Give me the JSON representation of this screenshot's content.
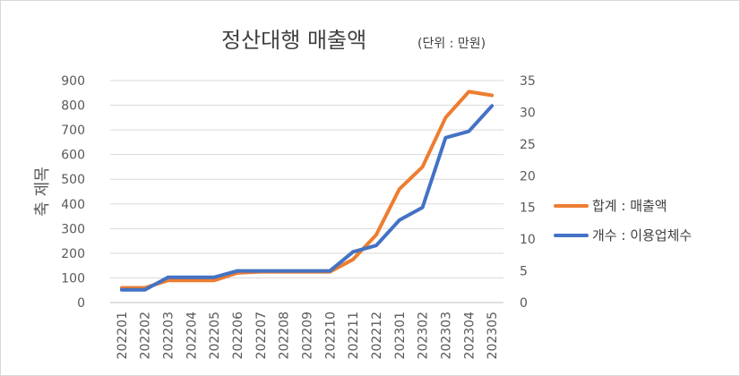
{
  "chart_data": {
    "type": "line",
    "title": "정산대행 매출액",
    "title_unit": "(단위 : 만원)",
    "ylabel": "축 제목",
    "categories": [
      "202201",
      "202202",
      "202203",
      "202204",
      "202205",
      "202206",
      "202207",
      "202208",
      "202209",
      "202210",
      "202211",
      "202212",
      "202301",
      "202302",
      "202303",
      "202304",
      "202305"
    ],
    "y_left": {
      "min": 0,
      "max": 900,
      "step": 100,
      "ticks": [
        "0",
        "100",
        "200",
        "300",
        "400",
        "500",
        "600",
        "700",
        "800",
        "900"
      ]
    },
    "y_right": {
      "min": 0,
      "max": 35,
      "step": 5,
      "ticks": [
        "0",
        "5",
        "10",
        "15",
        "20",
        "25",
        "30",
        "35"
      ]
    },
    "series": [
      {
        "name": "합계 : 매출액",
        "axis": "left",
        "color": "#ED7D31",
        "values": [
          60,
          60,
          90,
          90,
          90,
          120,
          125,
          125,
          125,
          125,
          175,
          275,
          460,
          550,
          750,
          855,
          840
        ]
      },
      {
        "name": "개수 : 이용업체수",
        "axis": "right",
        "color": "#4472C4",
        "values": [
          2,
          2,
          4,
          4,
          4,
          5,
          5,
          5,
          5,
          5,
          8,
          9,
          13,
          15,
          26,
          27,
          31
        ]
      }
    ],
    "legend_position": "right",
    "grid": true
  }
}
